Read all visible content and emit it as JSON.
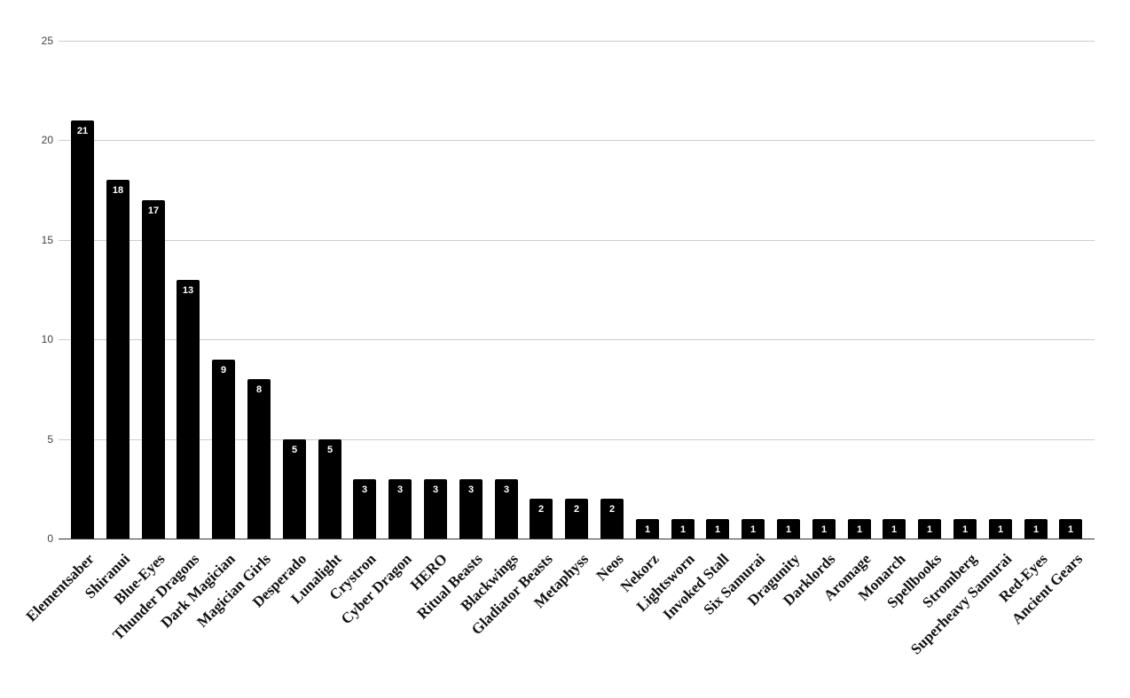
{
  "chart_data": {
    "type": "bar",
    "title": "",
    "xlabel": "",
    "ylabel": "",
    "ylim": [
      0,
      25
    ],
    "yticks": [
      0,
      5,
      10,
      15,
      20,
      25
    ],
    "grid": true,
    "legend": "none",
    "bar_color": "#000000",
    "data_labels": true,
    "categories": [
      "Elementsaber",
      "Shiranui",
      "Blue-Eyes",
      "Thunder Dragons",
      "Dark Magician",
      "Magician Girls",
      "Desperado",
      "Lunalight",
      "Crystron",
      "Cyber Dragon",
      "HERO",
      "Ritual Beasts",
      "Blackwings",
      "Gladiator Beasts",
      "Metaphyss",
      "Neos",
      "Nekorz",
      "Lightsworn",
      "Invoked Stall",
      "Six Samurai",
      "Dragunity",
      "Darklords",
      "Aromage",
      "Monarch",
      "Spellbooks",
      "Stromberg",
      "Superheavy Samurai",
      "Red-Eyes",
      "Ancient Gears"
    ],
    "values": [
      21,
      18,
      17,
      13,
      9,
      8,
      5,
      5,
      3,
      3,
      3,
      3,
      3,
      2,
      2,
      2,
      1,
      1,
      1,
      1,
      1,
      1,
      1,
      1,
      1,
      1,
      1,
      1,
      1
    ]
  }
}
